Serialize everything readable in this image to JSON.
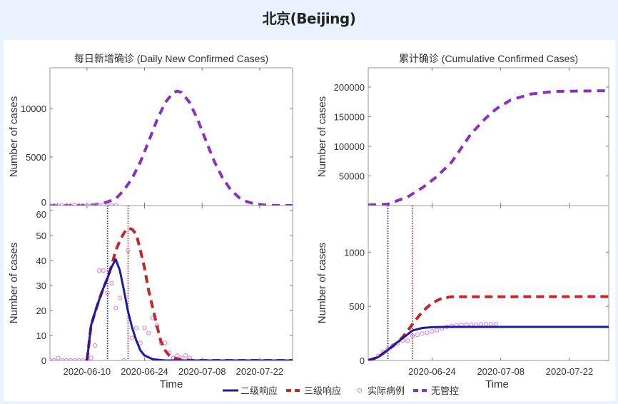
{
  "title": "北京(Beijing)",
  "colors": {
    "level2": "#1c1c9c",
    "level3": "#c0282a",
    "observed": "#e07ae0",
    "no_control": "#8a2fc0",
    "vline_level2": "#1c1c9c",
    "vline_level3": "#c0282a"
  },
  "legend": {
    "placement": "bottom-center",
    "items": [
      {
        "key": "level2",
        "label": "二级响应",
        "style": "solid"
      },
      {
        "key": "level3",
        "label": "三级响应",
        "style": "dashed"
      },
      {
        "key": "observed",
        "label": "实际病例",
        "style": "circle"
      },
      {
        "key": "no_control",
        "label": "无管控",
        "style": "dashed"
      }
    ]
  },
  "chart_data": [
    {
      "id": "daily-top",
      "type": "line",
      "title": "每日新增确诊 (Daily New Confirmed Cases)",
      "ylabel": "Number of cases",
      "xlim": [
        "2020-06-01",
        "2020-07-30"
      ],
      "ylim": [
        0,
        14200
      ],
      "yticks": [
        0,
        5000,
        10000
      ],
      "xticks": [
        "2020-06-10",
        "2020-06-24",
        "2020-07-08",
        "2020-07-22"
      ],
      "show_xtick_labels": false,
      "vlines": [],
      "series": [
        {
          "key": "no_control",
          "x": [
            "2020-06-01",
            "2020-06-05",
            "2020-06-07",
            "2020-06-09",
            "2020-06-11",
            "2020-06-13",
            "2020-06-15",
            "2020-06-17",
            "2020-06-19",
            "2020-06-21",
            "2020-06-23",
            "2020-06-25",
            "2020-06-27",
            "2020-06-29",
            "2020-07-01",
            "2020-07-02",
            "2020-07-03",
            "2020-07-05",
            "2020-07-07",
            "2020-07-09",
            "2020-07-11",
            "2020-07-13",
            "2020-07-15",
            "2020-07-17",
            "2020-07-19",
            "2020-07-21",
            "2020-07-23",
            "2020-07-25",
            "2020-07-27",
            "2020-07-30"
          ],
          "y": [
            0,
            1,
            4,
            16,
            64,
            165,
            386,
            700,
            1597,
            2822,
            4521,
            6607,
            8779,
            10610,
            11660,
            11800,
            11660,
            10610,
            8779,
            6607,
            4521,
            2822,
            1597,
            825,
            386,
            165,
            64,
            22,
            6,
            0
          ]
        },
        {
          "key": "observed",
          "x": [
            "2020-06-01",
            "2020-06-02",
            "2020-06-03",
            "2020-06-04",
            "2020-06-05",
            "2020-06-06",
            "2020-06-07",
            "2020-06-08",
            "2020-06-09",
            "2020-06-10",
            "2020-06-11",
            "2020-06-12",
            "2020-06-13",
            "2020-06-14",
            "2020-06-15",
            "2020-06-16",
            "2020-06-17"
          ],
          "y": [
            0,
            0,
            1,
            0,
            0,
            0,
            0,
            0,
            0,
            0,
            1,
            6,
            36,
            36,
            27,
            31,
            21
          ]
        }
      ]
    },
    {
      "id": "daily-bottom",
      "type": "line",
      "title": "",
      "ylabel": "Number of cases",
      "xlabel": "Time",
      "xlim": [
        "2020-06-01",
        "2020-07-30"
      ],
      "ylim": [
        0,
        62
      ],
      "yticks": [
        0,
        10,
        20,
        30,
        40,
        50,
        60
      ],
      "xticks": [
        "2020-06-10",
        "2020-06-24",
        "2020-07-08",
        "2020-07-22"
      ],
      "show_xtick_labels": true,
      "vlines": [
        {
          "key": "vline_level2",
          "x": "2020-06-15"
        },
        {
          "key": "vline_level3",
          "x": "2020-06-20"
        }
      ],
      "series": [
        {
          "key": "observed",
          "x": [
            "2020-06-01",
            "2020-06-02",
            "2020-06-03",
            "2020-06-04",
            "2020-06-05",
            "2020-06-06",
            "2020-06-07",
            "2020-06-08",
            "2020-06-09",
            "2020-06-10",
            "2020-06-11",
            "2020-06-12",
            "2020-06-13",
            "2020-06-14",
            "2020-06-15",
            "2020-06-16",
            "2020-06-17",
            "2020-06-18",
            "2020-06-19",
            "2020-06-20",
            "2020-06-21",
            "2020-06-22",
            "2020-06-23",
            "2020-06-24",
            "2020-06-25",
            "2020-06-26",
            "2020-06-27",
            "2020-06-28",
            "2020-06-29",
            "2020-06-30",
            "2020-07-01",
            "2020-07-02",
            "2020-07-03",
            "2020-07-04",
            "2020-07-05"
          ],
          "y": [
            0,
            0,
            1,
            0,
            0,
            0,
            0,
            0,
            0,
            0,
            1,
            6,
            36,
            36,
            27,
            31,
            21,
            25,
            0,
            44,
            9,
            13,
            7,
            13,
            11,
            17,
            14,
            7,
            7,
            3,
            1,
            2,
            1,
            2,
            1
          ]
        },
        {
          "key": "level3",
          "x": [
            "2020-06-10",
            "2020-06-11",
            "2020-06-12",
            "2020-06-13",
            "2020-06-14",
            "2020-06-15",
            "2020-06-16",
            "2020-06-17",
            "2020-06-18",
            "2020-06-19",
            "2020-06-20",
            "2020-06-21",
            "2020-06-22",
            "2020-06-23",
            "2020-06-24",
            "2020-06-25",
            "2020-06-26",
            "2020-06-27",
            "2020-06-28",
            "2020-06-29",
            "2020-06-30",
            "2020-07-01",
            "2020-07-03",
            "2020-07-06",
            "2020-07-30"
          ],
          "y": [
            0,
            14,
            19.5,
            24.5,
            29,
            33,
            38,
            44,
            48,
            51,
            53,
            52.5,
            50.5,
            44,
            37,
            28,
            21,
            14,
            7.5,
            4,
            2,
            1,
            0.3,
            0,
            0
          ]
        },
        {
          "key": "level2",
          "x": [
            "2020-06-10",
            "2020-06-11",
            "2020-06-12",
            "2020-06-13",
            "2020-06-14",
            "2020-06-15",
            "2020-06-16",
            "2020-06-17",
            "2020-06-18",
            "2020-06-19",
            "2020-06-20",
            "2020-06-21",
            "2020-06-22",
            "2020-06-23",
            "2020-06-24",
            "2020-06-26",
            "2020-06-29",
            "2020-07-30"
          ],
          "y": [
            0,
            14,
            19.5,
            24.5,
            29,
            33,
            37.5,
            40.5,
            36,
            28,
            19.5,
            13,
            8,
            4,
            2,
            0.5,
            0,
            0
          ]
        }
      ]
    },
    {
      "id": "cumulative-top",
      "type": "line",
      "title": "累计确诊 (Cumulative Confirmed Cases)",
      "ylabel": "Number of cases",
      "xlim": [
        "2020-06-11",
        "2020-07-30"
      ],
      "ylim": [
        0,
        232500
      ],
      "yticks": [
        50000,
        100000,
        150000,
        200000
      ],
      "xticks": [
        "2020-06-24",
        "2020-07-08",
        "2020-07-22"
      ],
      "show_xtick_labels": false,
      "vlines": [],
      "series": [
        {
          "key": "no_control",
          "x": [
            "2020-06-11",
            "2020-06-15",
            "2020-06-19",
            "2020-06-22",
            "2020-06-25",
            "2020-06-28",
            "2020-06-30",
            "2020-07-02",
            "2020-07-05",
            "2020-07-07",
            "2020-07-10",
            "2020-07-14",
            "2020-07-19",
            "2020-07-30"
          ],
          "y": [
            1000,
            2400,
            14500,
            30000,
            49000,
            73500,
            97600,
            121700,
            148000,
            162600,
            178000,
            188000,
            192700,
            194000
          ]
        }
      ]
    },
    {
      "id": "cumulative-bottom",
      "type": "line",
      "title": "",
      "ylabel": "Number of cases",
      "xlabel": "Time",
      "xlim": [
        "2020-06-11",
        "2020-07-30"
      ],
      "ylim": [
        0,
        1430
      ],
      "yticks": [
        0,
        500,
        1000
      ],
      "xticks": [
        "2020-06-24",
        "2020-07-08",
        "2020-07-22"
      ],
      "show_xtick_labels": true,
      "vlines": [
        {
          "key": "vline_level2",
          "x": "2020-06-15"
        },
        {
          "key": "vline_level3",
          "x": "2020-06-20"
        }
      ],
      "series": [
        {
          "key": "observed",
          "x": [
            "2020-06-11",
            "2020-06-12",
            "2020-06-13",
            "2020-06-14",
            "2020-06-15",
            "2020-06-16",
            "2020-06-17",
            "2020-06-18",
            "2020-06-19",
            "2020-06-20",
            "2020-06-21",
            "2020-06-22",
            "2020-06-23",
            "2020-06-24",
            "2020-06-25",
            "2020-06-26",
            "2020-06-27",
            "2020-06-28",
            "2020-06-29",
            "2020-06-30",
            "2020-07-01",
            "2020-07-02",
            "2020-07-03",
            "2020-07-04",
            "2020-07-05",
            "2020-07-06",
            "2020-07-07"
          ],
          "y": [
            1,
            7,
            43,
            79,
            106,
            137,
            158,
            183,
            183,
            227,
            236,
            249,
            256,
            269,
            280,
            297,
            311,
            318,
            325,
            328,
            329,
            331,
            332,
            334,
            335,
            335,
            335
          ]
        },
        {
          "key": "level3",
          "x": [
            "2020-06-11",
            "2020-06-13",
            "2020-06-15",
            "2020-06-17",
            "2020-06-18",
            "2020-06-19",
            "2020-06-20",
            "2020-06-22",
            "2020-06-24",
            "2020-06-26",
            "2020-06-28",
            "2020-07-30"
          ],
          "y": [
            0,
            30,
            97,
            170,
            215,
            270,
            335,
            450,
            530,
            575,
            588,
            590
          ]
        },
        {
          "key": "level2",
          "x": [
            "2020-06-11",
            "2020-06-13",
            "2020-06-15",
            "2020-06-17",
            "2020-06-19",
            "2020-06-20",
            "2020-06-22",
            "2020-06-24",
            "2020-06-27",
            "2020-07-30"
          ],
          "y": [
            0,
            30,
            97,
            170,
            240,
            276,
            300,
            307,
            310,
            310
          ]
        }
      ]
    }
  ]
}
